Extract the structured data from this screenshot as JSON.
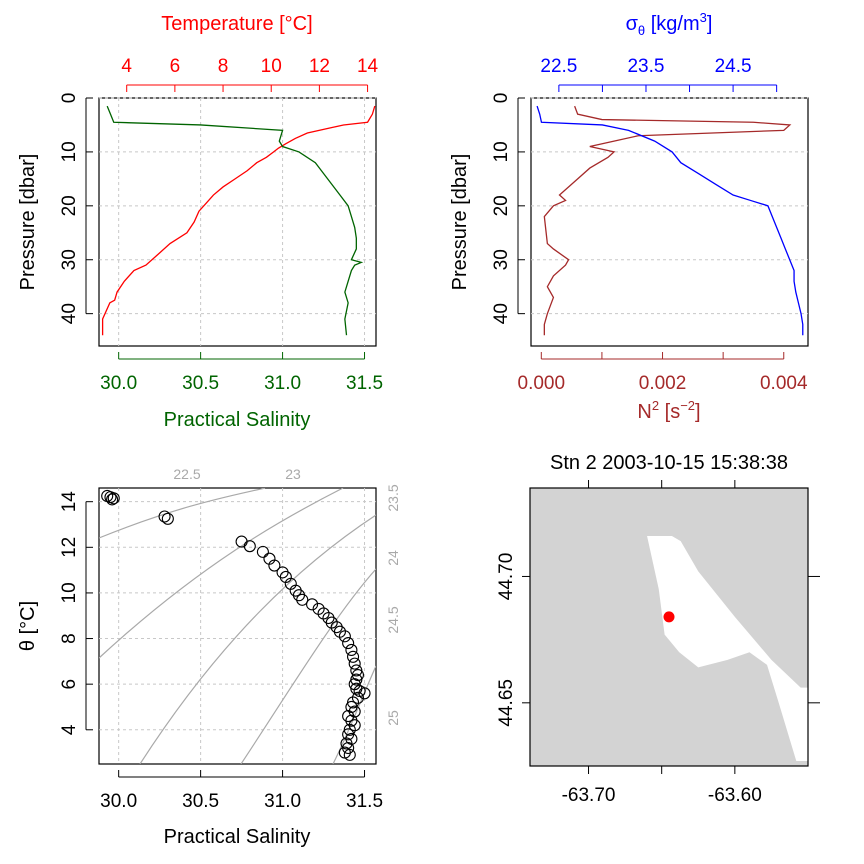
{
  "chart_data": [
    {
      "panel": "profile-temperature-salinity",
      "type": "line",
      "xlabel_top": "Temperature [°C]",
      "xlabel_bottom": "Practical Salinity",
      "ylabel": "Pressure [dbar]",
      "temperature_ticks": [
        "4",
        "6",
        "8",
        "10",
        "12",
        "14"
      ],
      "salinity_ticks": [
        "30.0",
        "30.5",
        "31.0",
        "31.5"
      ],
      "pressure_ticks": [
        "0",
        "10",
        "20",
        "30",
        "40"
      ],
      "temperature_range": [
        2.85,
        14.35
      ],
      "salinity_range": [
        29.88,
        31.57
      ],
      "pressure_range": [
        46,
        0
      ],
      "grid": true,
      "colors": {
        "temperature": "#ff0000",
        "salinity": "#006400"
      },
      "series": [
        {
          "name": "Temperature",
          "axis": "top",
          "x": [
            14.3,
            14.2,
            14.0,
            13.0,
            12.5,
            11.5,
            11.0,
            10.6,
            10.3,
            10.1,
            9.8,
            9.4,
            9.0,
            8.5,
            8.0,
            7.6,
            7.3,
            7.0,
            6.8,
            6.5,
            5.8,
            5.3,
            4.8,
            4.3,
            3.9,
            3.6,
            3.5,
            3.3,
            3.0,
            3.0
          ],
          "y": [
            1.5,
            3,
            4.5,
            5,
            5.5,
            6.5,
            7.5,
            8.5,
            9.3,
            10,
            11,
            12,
            13.5,
            15,
            16.5,
            18,
            19.5,
            21,
            23,
            25,
            27,
            29,
            31,
            32,
            34,
            36,
            37.5,
            38,
            41,
            44
          ]
        },
        {
          "name": "Salinity",
          "axis": "bottom",
          "x": [
            29.93,
            29.95,
            29.97,
            30.5,
            31.0,
            30.98,
            31.0,
            31.1,
            31.2,
            31.25,
            31.3,
            31.35,
            31.4,
            31.42,
            31.44,
            31.45,
            31.45,
            31.42,
            31.48,
            31.44,
            31.42,
            31.4,
            31.38,
            31.4,
            31.38,
            31.39
          ],
          "y": [
            1.5,
            3,
            4.5,
            5,
            6,
            8,
            9,
            10,
            12,
            14,
            16,
            18,
            20,
            22,
            24,
            26,
            28,
            30,
            30.5,
            31,
            32,
            34,
            36,
            38,
            41,
            44
          ]
        }
      ]
    },
    {
      "panel": "profile-density-n2",
      "type": "line",
      "xlabel_top": "σθ [kg/m3]",
      "xlabel_bottom": "N2 [s−2]",
      "ylabel": "Pressure [dbar]",
      "sigma_ticks": [
        "22.5",
        "23.5",
        "24.5"
      ],
      "n2_ticks": [
        "0.000",
        "0.002",
        "0.004"
      ],
      "pressure_ticks": [
        "0",
        "10",
        "20",
        "30",
        "40"
      ],
      "sigma_range": [
        22.18,
        25.36
      ],
      "n2_range": [
        -0.00017,
        0.0044
      ],
      "pressure_range": [
        46,
        0
      ],
      "grid": true,
      "colors": {
        "sigma": "#0000ff",
        "n2": "#a52a2a"
      },
      "series": [
        {
          "name": "Sigma-theta",
          "axis": "top",
          "x": [
            22.25,
            22.28,
            22.3,
            23.0,
            23.3,
            23.6,
            23.8,
            23.9,
            24.1,
            24.3,
            24.5,
            24.7,
            24.9,
            24.95,
            25.0,
            25.05,
            25.1,
            25.15,
            25.2,
            25.2,
            25.22,
            25.25,
            25.28,
            25.3,
            25.3
          ],
          "y": [
            1.5,
            3,
            4.5,
            5,
            6,
            8,
            10,
            12,
            14,
            16,
            18,
            19,
            20,
            22,
            24,
            26,
            28,
            30,
            32,
            34,
            36,
            38,
            40,
            42,
            44
          ]
        },
        {
          "name": "N2",
          "axis": "bottom",
          "x": [
            0.00055,
            0.0006,
            0.001,
            0.0035,
            0.0041,
            0.004,
            0.0016,
            0.0012,
            0.0008,
            0.0012,
            0.0011,
            0.0008,
            0.0006,
            0.0003,
            0.0004,
            0.0002,
            5e-05,
            0.0001,
            0.0002,
            0.00045,
            0.0004,
            0.0002,
            0.0001,
            0.0002,
            0.0001,
            5e-05,
            5e-05
          ],
          "y": [
            1.5,
            3,
            4,
            4.5,
            5,
            6,
            7,
            8,
            9,
            10,
            11,
            13,
            15,
            18,
            19,
            20,
            22,
            27,
            28,
            30,
            31,
            33,
            35,
            37,
            40,
            42,
            44
          ]
        }
      ]
    },
    {
      "panel": "ts-diagram",
      "type": "scatter",
      "xlabel": "Practical Salinity",
      "ylabel": "θ [°C]",
      "x_ticks": [
        "30.0",
        "30.5",
        "31.0",
        "31.5"
      ],
      "y_ticks": [
        "4",
        "6",
        "8",
        "10",
        "12",
        "14"
      ],
      "xlim": [
        29.88,
        31.57
      ],
      "ylim": [
        2.5,
        14.6
      ],
      "grid": true,
      "isopycnals": [
        {
          "label": "22.5",
          "position": "top"
        },
        {
          "label": "23",
          "position": "top"
        },
        {
          "label": "23.5",
          "position": "right"
        },
        {
          "label": "24",
          "position": "right"
        },
        {
          "label": "24.5",
          "position": "right"
        },
        {
          "label": "25",
          "position": "right"
        }
      ],
      "points": {
        "x": [
          29.93,
          29.95,
          29.97,
          29.96,
          30.28,
          30.3,
          30.75,
          30.8,
          30.88,
          30.92,
          30.95,
          31.0,
          31.02,
          31.05,
          31.08,
          31.1,
          31.12,
          31.18,
          31.22,
          31.25,
          31.28,
          31.3,
          31.33,
          31.35,
          31.38,
          31.4,
          31.42,
          31.43,
          31.44,
          31.45,
          31.46,
          31.45,
          31.44,
          31.45,
          31.47,
          31.5,
          31.46,
          31.43,
          31.42,
          31.44,
          31.4,
          31.42,
          31.44,
          31.41,
          31.4,
          31.42,
          31.39,
          31.4,
          31.38,
          31.41
        ],
        "y": [
          14.25,
          14.2,
          14.15,
          14.1,
          13.35,
          13.25,
          12.25,
          12.05,
          11.8,
          11.5,
          11.2,
          10.9,
          10.7,
          10.4,
          10.1,
          9.9,
          9.7,
          9.5,
          9.3,
          9.1,
          8.9,
          8.7,
          8.5,
          8.3,
          8.1,
          7.8,
          7.5,
          7.2,
          6.9,
          6.6,
          6.4,
          6.2,
          6.0,
          5.8,
          5.7,
          5.6,
          5.4,
          5.2,
          5.0,
          4.8,
          4.6,
          4.4,
          4.2,
          4.0,
          3.8,
          3.6,
          3.4,
          3.2,
          3.0,
          2.9
        ]
      }
    },
    {
      "panel": "station-map",
      "type": "map",
      "title": "Stn 2  2003-10-15 15:38:38",
      "x_ticks": [
        "-63.70",
        "-63.60"
      ],
      "y_ticks": [
        "44.70",
        "44.65"
      ],
      "lonlim": [
        -63.74,
        -63.55
      ],
      "latlim": [
        44.625,
        44.735
      ],
      "colors": {
        "land": "#d3d3d3",
        "water": "#ffffff",
        "station": "#ff0000"
      },
      "station": {
        "lon": -63.645,
        "lat": 44.684
      },
      "water_polygon": {
        "lon": [
          -63.66,
          -63.643,
          -63.637,
          -63.625,
          -63.6,
          -63.575,
          -63.555,
          -63.55,
          -63.55,
          -63.558,
          -63.57,
          -63.578,
          -63.59,
          -63.605,
          -63.625,
          -63.638,
          -63.648,
          -63.652
        ],
        "lat": [
          44.716,
          44.716,
          44.714,
          44.702,
          44.684,
          44.667,
          44.656,
          44.656,
          44.627,
          44.627,
          44.65,
          44.665,
          44.67,
          44.667,
          44.664,
          44.67,
          44.677,
          44.695
        ]
      }
    }
  ]
}
